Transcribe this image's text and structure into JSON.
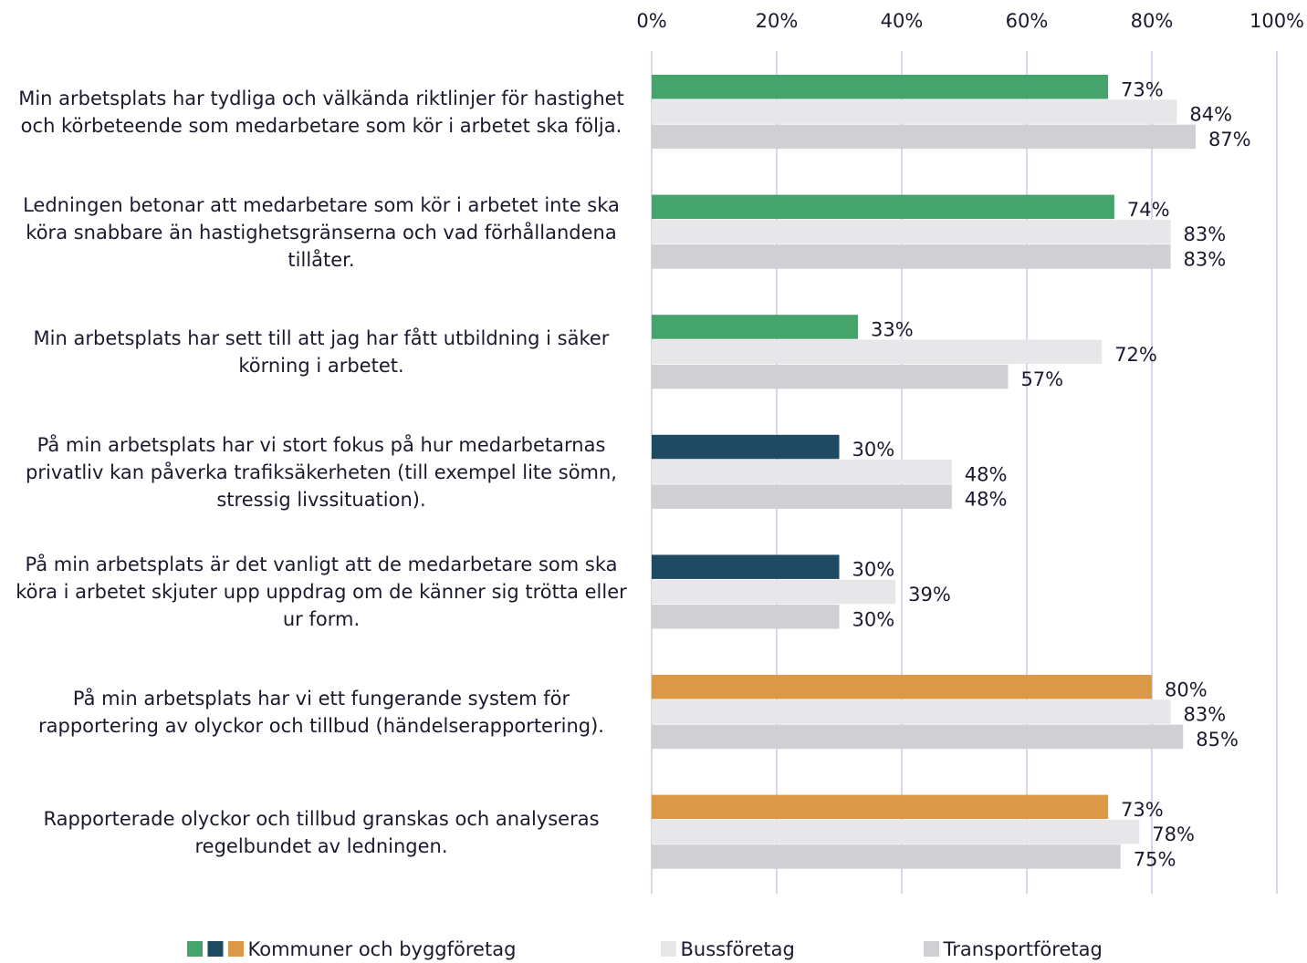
{
  "chart_data": {
    "type": "hbar",
    "categories": [
      "Min arbetsplats har tydliga och välkända riktlinjer för hastighet och körbeteende som medarbetare som kör i arbetet ska följa.",
      "Ledningen betonar att medarbetare som kör i arbetet inte ska köra snabbare än hastighetsgränserna och vad förhållandena tillåter.",
      "Min arbetsplats har sett till att jag har fått utbildning i säker körning i arbetet.",
      "På min arbetsplats har vi stort fokus på hur medarbetarnas privatliv kan påverka trafiksäkerheten (till exempel lite sömn, stressig livssituation).",
      "På min arbetsplats är det vanligt att de medarbetare som ska köra i arbetet skjuter upp uppdrag om de känner sig trötta eller ur form.",
      "På min arbetsplats har vi ett fungerande system för rapportering av olyckor och tillbud (händelserapportering).",
      "Rapporterade olyckor och tillbud granskas och analyseras regelbundet av ledningen."
    ],
    "series": [
      {
        "name": "Kommuner och byggföretag",
        "colors": [
          "#45a36c",
          "#45a36c",
          "#45a36c",
          "#1e4a62",
          "#1e4a62",
          "#da9848",
          "#da9848"
        ],
        "legend_colors": [
          "#45a36c",
          "#1e4a62",
          "#da9848"
        ],
        "values": [
          73,
          74,
          33,
          30,
          30,
          80,
          73
        ],
        "value_labels": [
          "73%",
          "74%",
          "33%",
          "30%",
          "30%",
          "80%",
          "73%"
        ]
      },
      {
        "name": "Bussföretag",
        "color": "#e7e7e9",
        "values": [
          84,
          83,
          72,
          48,
          39,
          83,
          78
        ],
        "value_labels": [
          "84%",
          "83%",
          "72%",
          "48%",
          "39%",
          "83%",
          "78%"
        ]
      },
      {
        "name": "Transportföretag",
        "color": "#d0cfd4",
        "values": [
          87,
          83,
          57,
          48,
          30,
          85,
          75
        ],
        "value_labels": [
          "87%",
          "83%",
          "57%",
          "48%",
          "30%",
          "85%",
          "75%"
        ]
      }
    ],
    "xlim": [
      0,
      100
    ],
    "xticks": [
      {
        "value": 0,
        "label": "0%"
      },
      {
        "value": 20,
        "label": "20%"
      },
      {
        "value": 40,
        "label": "40%"
      },
      {
        "value": 60,
        "label": "60%"
      },
      {
        "value": 80,
        "label": "80%"
      },
      {
        "value": 100,
        "label": "100%"
      }
    ],
    "grid": true,
    "grid_color": "#cbc8e4",
    "legend": "bottom"
  }
}
